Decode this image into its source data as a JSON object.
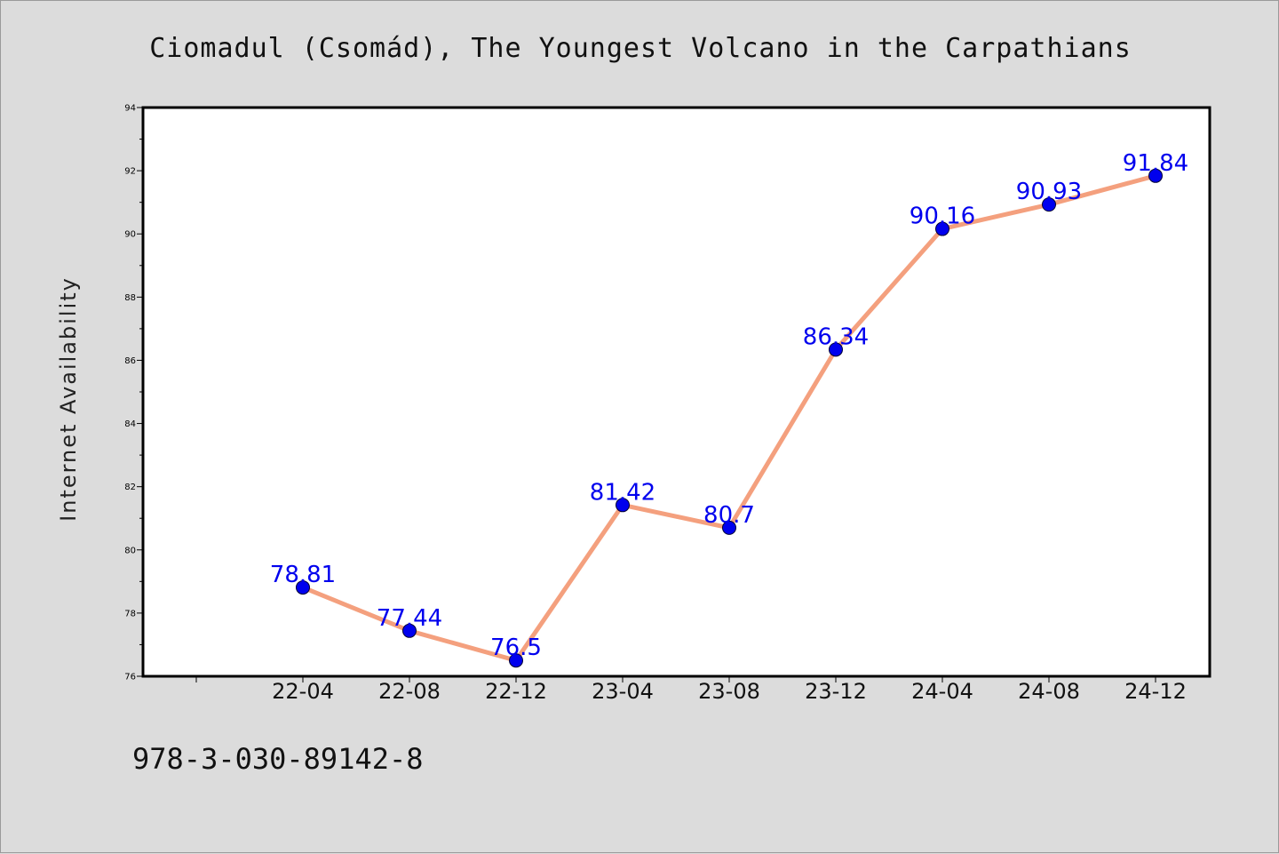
{
  "title": "Ciomadul (Csomád), The Youngest Volcano in the Carpathians",
  "footer_text": "978-3-030-89142-8",
  "colors": {
    "background": "#dcdcdc",
    "plot_background": "#ffffff",
    "line": "#f4a07e",
    "marker": "#0000ee",
    "data_label": "#0000ee"
  },
  "chart_data": {
    "type": "line",
    "title": "Ciomadul (Csomád), The Youngest Volcano in the Carpathians",
    "xlabel": "",
    "ylabel": "Internet Availability",
    "categories": [
      "22-04",
      "22-08",
      "22-12",
      "23-04",
      "23-08",
      "23-12",
      "24-04",
      "24-08",
      "24-12"
    ],
    "series": [
      {
        "values": [
          78.81,
          77.44,
          76.5,
          81.42,
          80.7,
          86.34,
          90.16,
          90.93,
          91.84
        ]
      }
    ],
    "ylim": [
      76,
      94
    ],
    "yticks": [
      76,
      78,
      80,
      82,
      84,
      86,
      88,
      90,
      92,
      94
    ],
    "grid": false,
    "legend": "none"
  }
}
